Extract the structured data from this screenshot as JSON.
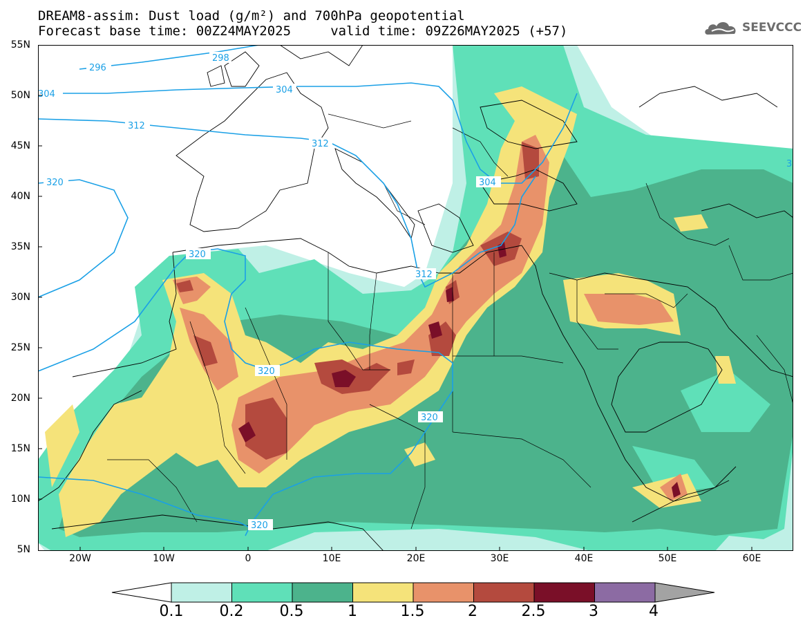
{
  "title": {
    "line1": "DREAM8-assim: Dust load (g/m²) and 700hPa geopotential",
    "line2": "Forecast base time: 00Z24MAY2025     valid time: 09Z26MAY2025 (+57)"
  },
  "logo": {
    "text": "SEEVCCC",
    "icon": "cloud-logo-icon"
  },
  "axes": {
    "lat_labels": [
      "55N",
      "50N",
      "45N",
      "40N",
      "35N",
      "30N",
      "25N",
      "20N",
      "15N",
      "10N",
      "5N"
    ],
    "lon_labels": [
      "20W",
      "10W",
      "0",
      "10E",
      "20E",
      "30E",
      "40E",
      "50E",
      "60E"
    ]
  },
  "chart_data": {
    "type": "heatmap",
    "variable": "Dust load (g/m²)",
    "overlay": "700hPa geopotential",
    "lon_range": [
      -25,
      65
    ],
    "lat_range": [
      5,
      55
    ],
    "contour_labels": [
      "296",
      "298",
      "304",
      "304",
      "312",
      "312",
      "304",
      "320",
      "320",
      "320",
      "312",
      "320",
      "320",
      "3"
    ],
    "colorbar": {
      "levels": [
        "0.1",
        "0.2",
        "0.5",
        "1",
        "1.5",
        "2",
        "2.5",
        "3",
        "4"
      ],
      "colors": [
        "#ffffff",
        "#bff0e6",
        "#5fe0b8",
        "#4cb38c",
        "#f5e37a",
        "#e8926a",
        "#b44a3e",
        "#7a0f28",
        "#8c6ba3",
        "#a3a3a3"
      ]
    }
  }
}
